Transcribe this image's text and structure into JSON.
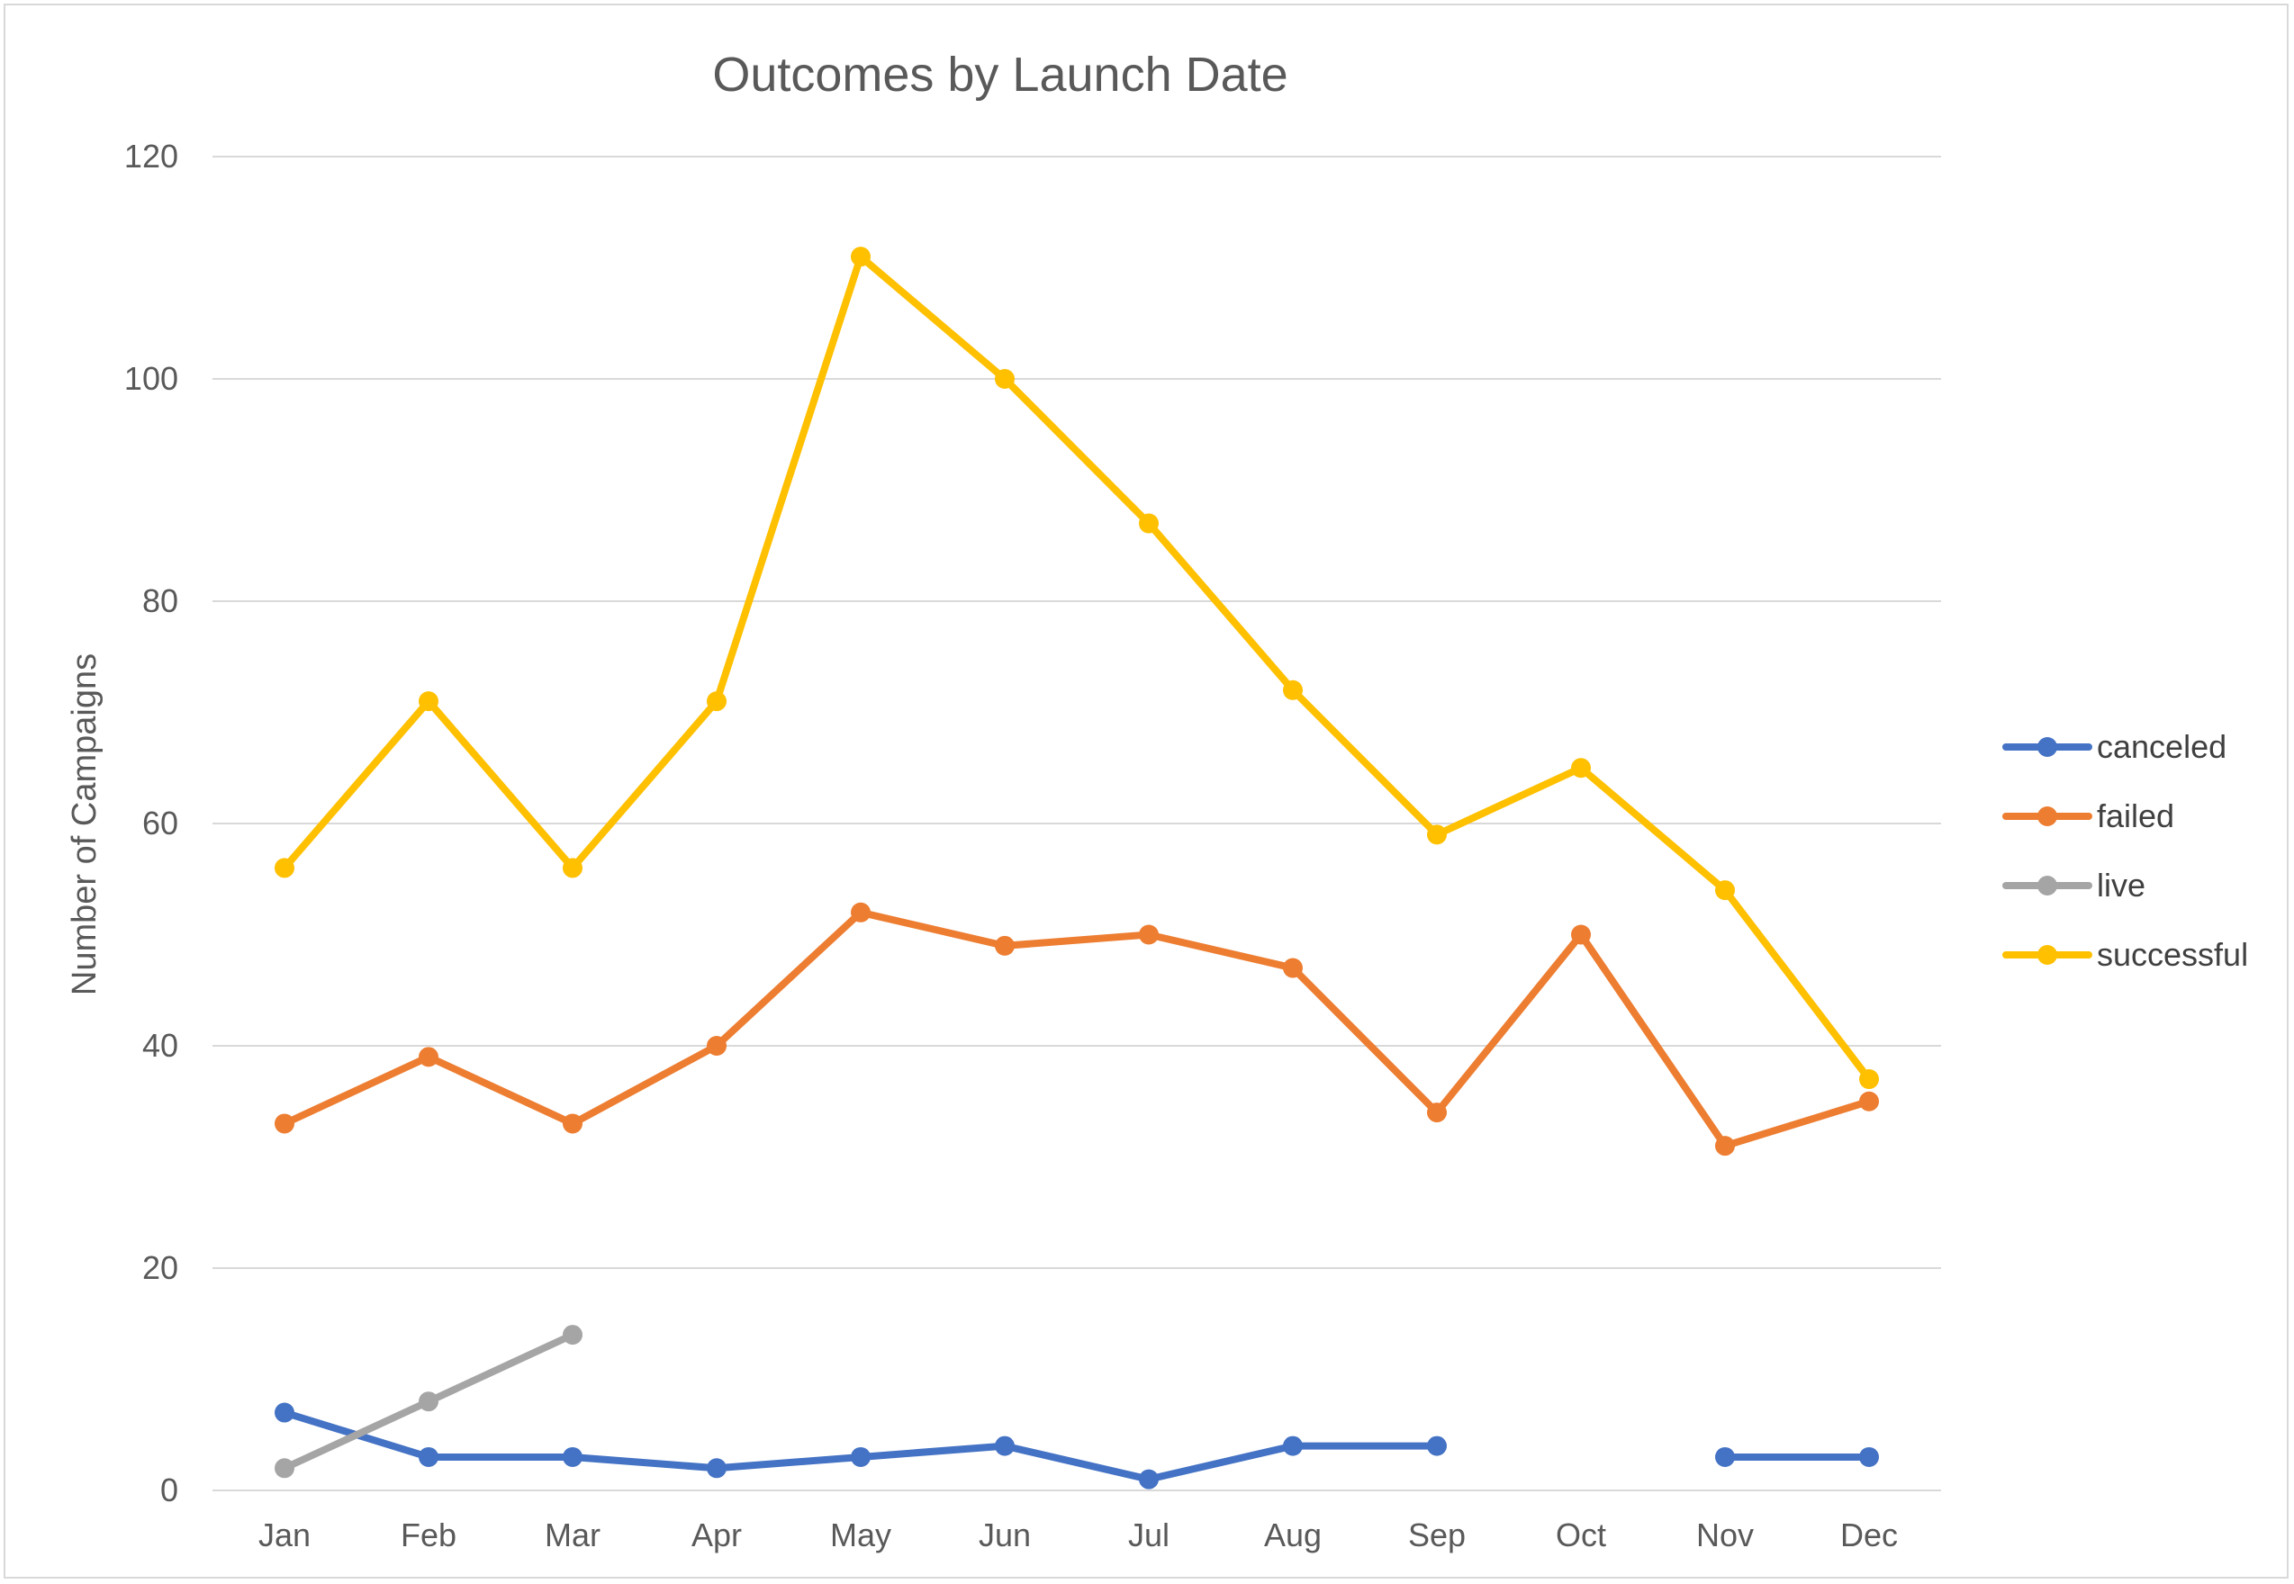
{
  "chart_data": {
    "type": "line",
    "title": "Outcomes by Launch Date",
    "xlabel": "",
    "ylabel": "Number of Campaigns",
    "categories": [
      "Jan",
      "Feb",
      "Mar",
      "Apr",
      "May",
      "Jun",
      "Jul",
      "Aug",
      "Sep",
      "Oct",
      "Nov",
      "Dec"
    ],
    "ylim": [
      0,
      120
    ],
    "yticks": [
      0,
      20,
      40,
      60,
      80,
      100,
      120
    ],
    "grid": true,
    "legend_position": "right",
    "series": [
      {
        "name": "canceled",
        "color": "#4472c4",
        "values": [
          7,
          3,
          3,
          2,
          3,
          4,
          1,
          4,
          4,
          null,
          3,
          3
        ]
      },
      {
        "name": "failed",
        "color": "#ed7d31",
        "values": [
          33,
          39,
          33,
          40,
          52,
          49,
          50,
          47,
          34,
          50,
          31,
          35
        ]
      },
      {
        "name": "live",
        "color": "#a5a5a5",
        "values": [
          2,
          8,
          14,
          null,
          null,
          null,
          null,
          null,
          null,
          null,
          null,
          null
        ]
      },
      {
        "name": "successful",
        "color": "#ffc000",
        "values": [
          56,
          71,
          56,
          71,
          111,
          100,
          87,
          72,
          59,
          65,
          54,
          37
        ]
      }
    ]
  }
}
